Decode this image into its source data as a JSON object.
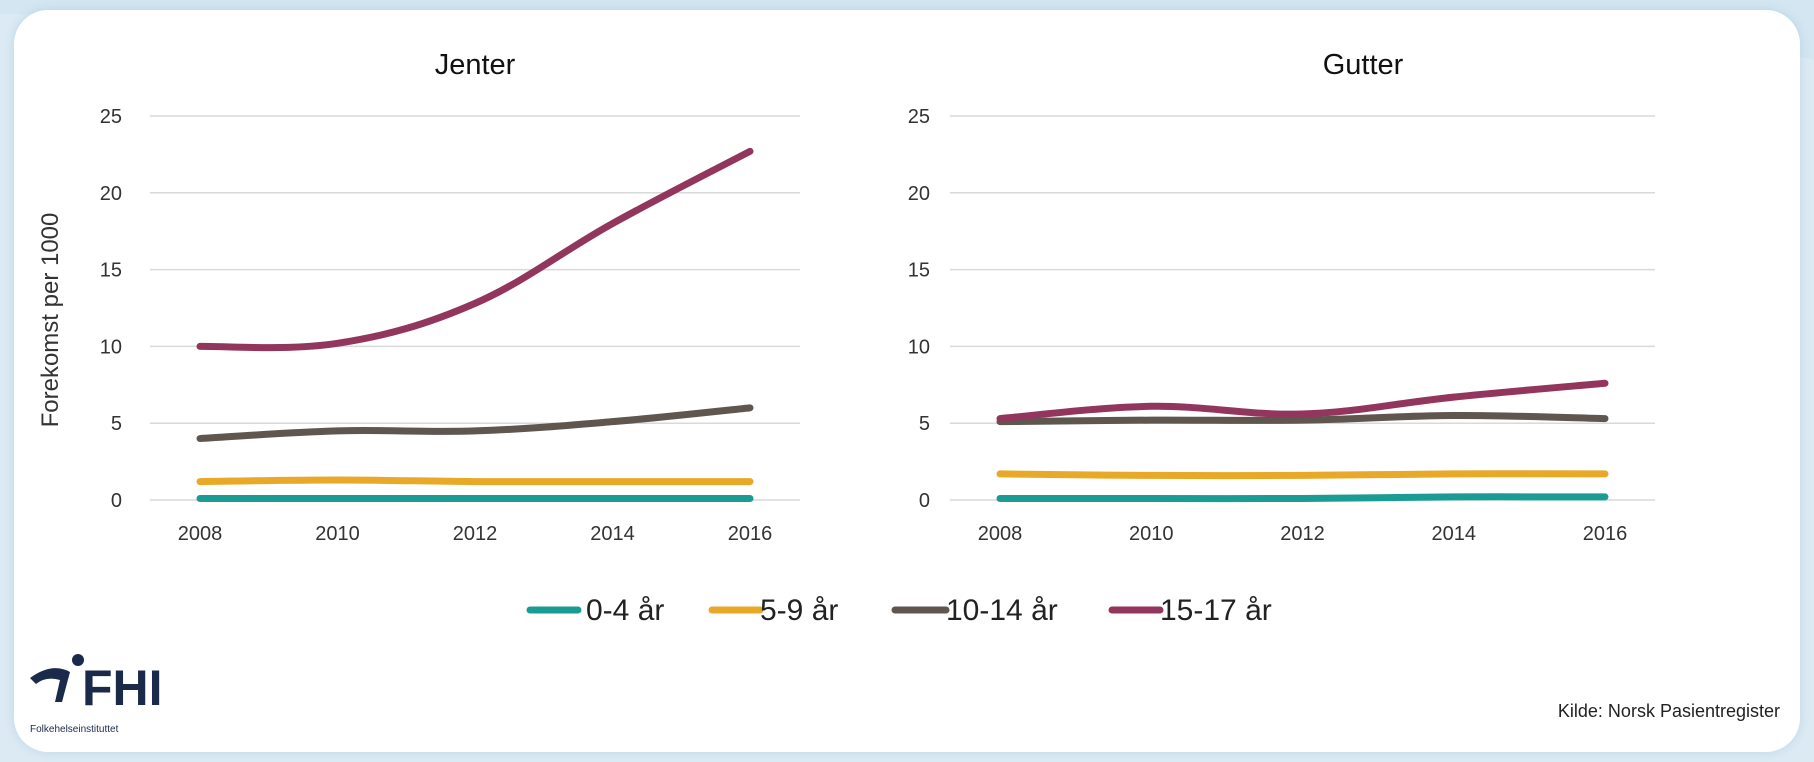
{
  "chart_data": [
    {
      "type": "line",
      "title": "Jenter",
      "ylabel": "Forekomst per 1000",
      "xlabel": "",
      "ylim": [
        0,
        25
      ],
      "yticks": [
        0,
        5,
        10,
        15,
        20,
        25
      ],
      "x": [
        2008,
        2010,
        2012,
        2014,
        2016
      ],
      "xticks": [
        "2008",
        "2010",
        "2012",
        "2014",
        "2016"
      ],
      "grid": true,
      "series": [
        {
          "name": "0-4 år",
          "color": "#1a9c94",
          "values": [
            0.1,
            0.1,
            0.1,
            0.1,
            0.1
          ]
        },
        {
          "name": "5-9 år",
          "color": "#e8a928",
          "values": [
            1.2,
            1.3,
            1.2,
            1.2,
            1.2
          ]
        },
        {
          "name": "10-14 år",
          "color": "#5f5650",
          "values": [
            4.0,
            4.5,
            4.5,
            5.1,
            6.0
          ]
        },
        {
          "name": "15-17 år",
          "color": "#93365e",
          "values": [
            10.0,
            10.2,
            12.8,
            18.0,
            22.7
          ]
        }
      ]
    },
    {
      "type": "line",
      "title": "Gutter",
      "ylabel": "",
      "xlabel": "",
      "ylim": [
        0,
        25
      ],
      "yticks": [
        0,
        5,
        10,
        15,
        20,
        25
      ],
      "x": [
        2008,
        2010,
        2012,
        2014,
        2016
      ],
      "xticks": [
        "2008",
        "2010",
        "2012",
        "2014",
        "2016"
      ],
      "grid": true,
      "series": [
        {
          "name": "0-4 år",
          "color": "#1a9c94",
          "values": [
            0.1,
            0.1,
            0.1,
            0.2,
            0.2
          ]
        },
        {
          "name": "5-9 år",
          "color": "#e8a928",
          "values": [
            1.7,
            1.6,
            1.6,
            1.7,
            1.7
          ]
        },
        {
          "name": "10-14 år",
          "color": "#5f5650",
          "values": [
            5.1,
            5.2,
            5.2,
            5.5,
            5.3
          ]
        },
        {
          "name": "15-17 år",
          "color": "#93365e",
          "values": [
            5.3,
            6.1,
            5.6,
            6.7,
            7.6
          ]
        }
      ]
    }
  ],
  "legend": {
    "placement": "bottom",
    "items": [
      {
        "label": "0-4 år",
        "color": "#1a9c94"
      },
      {
        "label": "5-9 år",
        "color": "#e8a928"
      },
      {
        "label": "10-14 år",
        "color": "#5f5650"
      },
      {
        "label": "15-17 år",
        "color": "#93365e"
      }
    ]
  },
  "source": "Kilde: Norsk Pasientregister",
  "logo": {
    "name": "FHI",
    "subtitle": "Folkehelseinstituttet",
    "icon": "fhi-figure-icon"
  },
  "colors": {
    "background": "#dceaf3",
    "panel": "#ffffff",
    "grid": "#d9d9d9"
  }
}
